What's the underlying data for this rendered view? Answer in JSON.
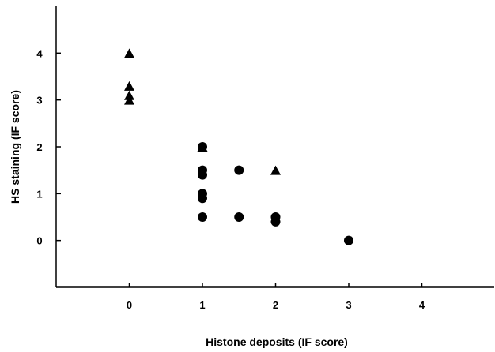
{
  "chart_data": {
    "type": "scatter",
    "title": "",
    "xlabel": "Histone deposits (IF score)",
    "ylabel": "HS staining (IF score)",
    "xlim": [
      -1,
      5
    ],
    "ylim": [
      -1,
      5
    ],
    "xticks": [
      0,
      1,
      2,
      3,
      4
    ],
    "yticks": [
      0,
      1,
      2,
      3,
      4
    ],
    "grid": false,
    "legend": "none",
    "series": [
      {
        "marker": "triangle",
        "points": [
          {
            "x": 0,
            "y": 4.0
          },
          {
            "x": 0,
            "y": 3.3
          },
          {
            "x": 0,
            "y": 3.1
          },
          {
            "x": 0,
            "y": 3.0
          },
          {
            "x": 1,
            "y": 2.0
          },
          {
            "x": 2,
            "y": 1.5
          }
        ]
      },
      {
        "marker": "circle",
        "points": [
          {
            "x": 1,
            "y": 2.0
          },
          {
            "x": 1,
            "y": 1.5
          },
          {
            "x": 1,
            "y": 1.4
          },
          {
            "x": 1,
            "y": 1.0
          },
          {
            "x": 1,
            "y": 0.9
          },
          {
            "x": 1,
            "y": 0.5
          },
          {
            "x": 1.5,
            "y": 1.5
          },
          {
            "x": 1.5,
            "y": 0.5
          },
          {
            "x": 2,
            "y": 0.5
          },
          {
            "x": 2,
            "y": 0.4
          },
          {
            "x": 3,
            "y": 0.0
          }
        ]
      }
    ]
  }
}
